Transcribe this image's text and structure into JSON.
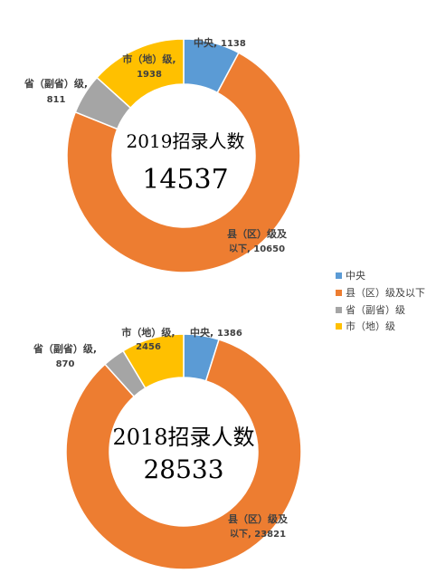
{
  "chart_data": [
    {
      "type": "pie",
      "variant": "donut",
      "center_title": "2019招录人数",
      "center_value": "14537",
      "categories": [
        "中央",
        "县（区）级及以下",
        "省（副省）级",
        "市（地）级"
      ],
      "values": [
        1138,
        10650,
        811,
        1938
      ],
      "labels": [
        {
          "name": "中央",
          "value": "1138",
          "text": "中央, 1138"
        },
        {
          "name": "县（区）级及以下",
          "value": "10650",
          "line1": "县（区）级及",
          "line2": "以下, 10650"
        },
        {
          "name": "省（副省）级",
          "value": "811",
          "line1": "省（副省）级,",
          "line2": "811"
        },
        {
          "name": "市（地）级",
          "value": "1938",
          "line1": "市（地）级,",
          "line2": "1938"
        }
      ]
    },
    {
      "type": "pie",
      "variant": "donut",
      "center_title": "2018招录人数",
      "center_value": "28533",
      "categories": [
        "中央",
        "县（区）级及以下",
        "省（副省）级",
        "市（地）级"
      ],
      "values": [
        1386,
        23821,
        870,
        2456
      ],
      "labels": [
        {
          "name": "中央",
          "value": "1386",
          "text": "中央, 1386"
        },
        {
          "name": "县（区）级及以下",
          "value": "23821",
          "line1": "县（区）级及",
          "line2": "以下, 23821"
        },
        {
          "name": "省（副省）级",
          "value": "870",
          "line1": "省（副省）级,",
          "line2": "870"
        },
        {
          "name": "市（地）级",
          "value": "2456",
          "line1": "市（地）级,",
          "line2": "2456"
        }
      ]
    }
  ],
  "legend": {
    "placement": "right",
    "items": [
      "中央",
      "县（区）级及以下",
      "省（副省）级",
      "市（地）级"
    ]
  },
  "colors": [
    "#5B9BD5",
    "#ED7D31",
    "#A5A5A5",
    "#FFC000"
  ]
}
